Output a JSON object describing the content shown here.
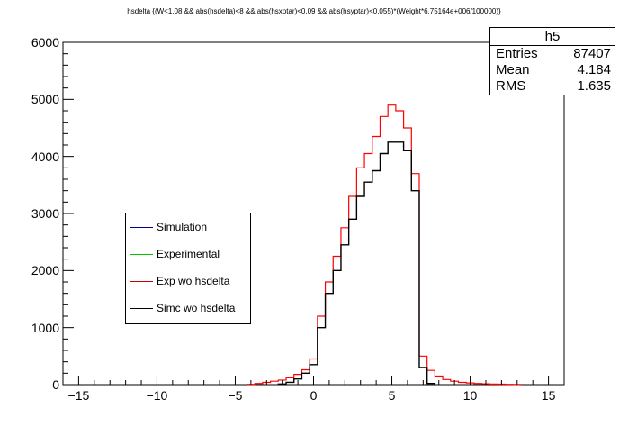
{
  "title": "hsdelta {(W<1.08 && abs(hsdelta)<8 && abs(hsxptar)<0.09 && abs(hsyptar)<0.055)*(Weight*6.75164e+006/100000)}",
  "stats": {
    "name": "h5",
    "rows": [
      {
        "label": "Entries",
        "value": "87407"
      },
      {
        "label": "Mean",
        "value": "4.184"
      },
      {
        "label": "RMS",
        "value": "1.635"
      }
    ]
  },
  "legend": [
    {
      "label": "Simulation",
      "color": "#000080"
    },
    {
      "label": "Experimental",
      "color": "#00c000"
    },
    {
      "label": "Exp wo hsdelta",
      "color": "#cc0000"
    },
    {
      "label": "Simc wo hsdelta",
      "color": "#000000"
    }
  ],
  "chart_data": {
    "type": "histogram",
    "xlim": [
      -16,
      16
    ],
    "ylim": [
      0,
      6000
    ],
    "x_ticks": [
      -15,
      -10,
      -5,
      0,
      5,
      10,
      15
    ],
    "y_ticks": [
      0,
      1000,
      2000,
      3000,
      4000,
      5000,
      6000
    ],
    "grid": false,
    "bin_width": 0.5,
    "series": [
      {
        "name": "Exp wo hsdelta",
        "color": "#ff0000",
        "x": [
          -4.0,
          -3.5,
          -3.0,
          -2.5,
          -2.0,
          -1.5,
          -1.0,
          -0.5,
          0.0,
          0.5,
          1.0,
          1.5,
          2.0,
          2.5,
          3.0,
          3.5,
          4.0,
          4.5,
          5.0,
          5.5,
          6.0,
          6.5,
          7.0,
          7.5,
          8.0,
          8.5,
          9.0,
          9.5,
          10.0,
          10.5,
          11.0,
          11.5,
          12.0,
          12.5,
          13.0
        ],
        "y": [
          5,
          20,
          40,
          60,
          80,
          120,
          180,
          260,
          450,
          1200,
          1800,
          2250,
          2750,
          3300,
          3800,
          4050,
          4350,
          4700,
          4900,
          4800,
          4500,
          3700,
          500,
          250,
          150,
          90,
          60,
          40,
          30,
          20,
          15,
          10,
          8,
          5,
          3
        ]
      },
      {
        "name": "Simc wo hsdelta",
        "color": "#000000",
        "x": [
          -2.0,
          -1.5,
          -1.0,
          -0.5,
          0.0,
          0.5,
          1.0,
          1.5,
          2.0,
          2.5,
          3.0,
          3.5,
          4.0,
          4.5,
          5.0,
          5.5,
          6.0,
          6.5,
          7.0,
          7.5
        ],
        "y": [
          10,
          40,
          100,
          200,
          350,
          1000,
          1600,
          2000,
          2450,
          2900,
          3300,
          3550,
          3750,
          4050,
          4250,
          4250,
          4100,
          3400,
          300,
          20
        ]
      }
    ]
  }
}
